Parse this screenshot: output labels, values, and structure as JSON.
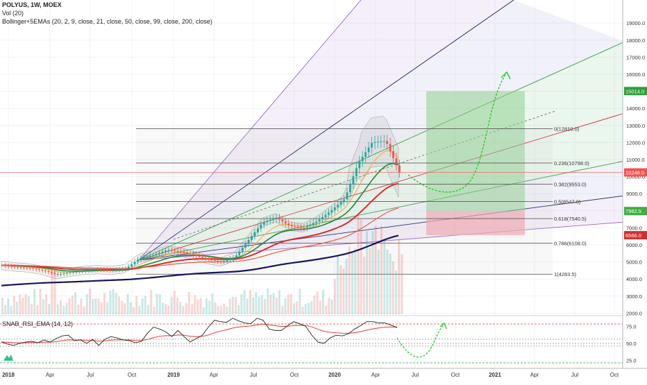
{
  "header": {
    "symbol_line": "POLYUS, 1W, MOEX",
    "vol_line": "Vol (20)",
    "bb_line": "Bollinger+5EMAs (20, 2, 9, close, 21, close, 50, close, 99, close, 200, close)",
    "rsi_line": "SNAB_RSI_EMA  (14, 12)"
  },
  "colors": {
    "candle_up": "#26a69a",
    "candle_down": "#ef5350",
    "ema_fast": "#1b8a2e",
    "ema_mid": "#f2a93b",
    "ema_slow": "#d32f2f",
    "ema_200": "#14145e",
    "target_zone": "#8fd18f",
    "stop_zone": "#f3a6b0",
    "current_price": "#ef5350"
  },
  "chart_data": [
    {
      "type": "candlestick",
      "title": "POLYUS, 1W, MOEX",
      "x_ticks": [
        "2018",
        "Apr",
        "Jul",
        "Oct",
        "2019",
        "Apr",
        "Jul",
        "Oct",
        "2020",
        "Apr",
        "Jul",
        "Oct",
        "2021",
        "Apr",
        "Jul",
        "Oct"
      ],
      "y_ticks": [
        2000,
        3000,
        4000,
        5000,
        6000,
        7000,
        8000,
        9000,
        10000,
        11000,
        12000,
        13000,
        14000,
        15000,
        16000,
        17000,
        18000,
        19000
      ],
      "ylim": [
        1100,
        19500
      ],
      "grid": true,
      "price_labels": [
        {
          "text": "15014.0",
          "value": 15014,
          "kind": "target"
        },
        {
          "text": "10246.0",
          "value": 10246,
          "kind": "current"
        },
        {
          "text": "7982.5",
          "value": 7982.5,
          "kind": "entry"
        },
        {
          "text": "6566.0",
          "value": 6566,
          "kind": "stop"
        }
      ],
      "fib_levels": [
        {
          "label": "0(12810.0)",
          "value": 12810
        },
        {
          "label": "0.236(10798.0)",
          "value": 10798
        },
        {
          "label": "0.382(9553.0)",
          "value": 9553
        },
        {
          "label": "0.5(8547.0)",
          "value": 8547
        },
        {
          "label": "0.618(7540.5)",
          "value": 7540.5
        },
        {
          "label": "0.786(6108.0)",
          "value": 6108
        },
        {
          "label": "1(4283.5)",
          "value": 4283.5
        }
      ],
      "close_series": [
        {
          "date": "2018-01",
          "close": 4800
        },
        {
          "date": "2018-02",
          "close": 4700
        },
        {
          "date": "2018-03",
          "close": 4650
        },
        {
          "date": "2018-04",
          "close": 4500
        },
        {
          "date": "2018-05",
          "close": 4250
        },
        {
          "date": "2018-06",
          "close": 4400
        },
        {
          "date": "2018-07",
          "close": 4500
        },
        {
          "date": "2018-08",
          "close": 4550
        },
        {
          "date": "2018-09",
          "close": 4500
        },
        {
          "date": "2018-10",
          "close": 4600
        },
        {
          "date": "2018-11",
          "close": 5200
        },
        {
          "date": "2018-12",
          "close": 5400
        },
        {
          "date": "2019-01",
          "close": 5700
        },
        {
          "date": "2019-02",
          "close": 5600
        },
        {
          "date": "2019-03",
          "close": 5400
        },
        {
          "date": "2019-04",
          "close": 5150
        },
        {
          "date": "2019-05",
          "close": 5000
        },
        {
          "date": "2019-06",
          "close": 5300
        },
        {
          "date": "2019-07",
          "close": 6300
        },
        {
          "date": "2019-08",
          "close": 7300
        },
        {
          "date": "2019-09",
          "close": 7600
        },
        {
          "date": "2019-10",
          "close": 7100
        },
        {
          "date": "2019-11",
          "close": 7000
        },
        {
          "date": "2019-12",
          "close": 7400
        },
        {
          "date": "2020-01",
          "close": 8000
        },
        {
          "date": "2020-02",
          "close": 8700
        },
        {
          "date": "2020-03",
          "close": 10800
        },
        {
          "date": "2020-04",
          "close": 12000
        },
        {
          "date": "2020-05",
          "close": 12100
        },
        {
          "date": "2020-05-end",
          "close": 10246
        }
      ],
      "trade_zone": {
        "entry": 7982.5,
        "target": 15014,
        "stop": 6566
      }
    },
    {
      "type": "line",
      "title": "SNAB_RSI_EMA  (14, 12)",
      "y_ticks": [
        25.0,
        50.0,
        75.0
      ],
      "ylim": [
        15,
        90
      ],
      "rsi_series": [
        52,
        49,
        47,
        50,
        52,
        53,
        51,
        55,
        52,
        57,
        61,
        62,
        54,
        55,
        50,
        56,
        47,
        56,
        60,
        58,
        55,
        54,
        51,
        53,
        65,
        74,
        71,
        67,
        60,
        69,
        60,
        52,
        57,
        62,
        74,
        84,
        82,
        81,
        87,
        83,
        80,
        79,
        87,
        84,
        71,
        69,
        69,
        76,
        82,
        79,
        75,
        62,
        52,
        50,
        58,
        62,
        61,
        64,
        71,
        76,
        82,
        82,
        80,
        80,
        77,
        73
      ],
      "projection_note": "forecast curve"
    }
  ]
}
